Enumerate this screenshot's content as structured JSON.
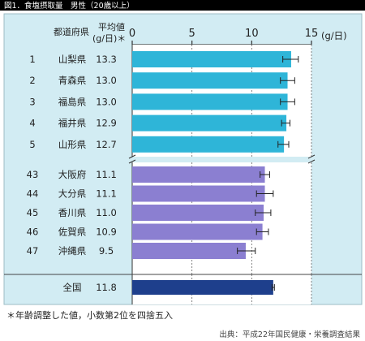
{
  "figure_title": "図1．食塩摂取量　男性（20歳以上）",
  "headers": {
    "prefecture": "都道府県",
    "mean_line1": "平均値",
    "mean_line2": "(g/日)＊",
    "unit": "(g/日)"
  },
  "footnote": "＊年齢調整した値，小数第2位を四捨五入",
  "source": "出典：平成22年国民健康・栄養調査結果",
  "colors": {
    "top_bar": "#2eb5d8",
    "bottom_bar": "#8b7fd1",
    "national_bar": "#1e3f8c",
    "panel": "#d2ecf3",
    "header_band": "#000000"
  },
  "chart_data": {
    "type": "bar",
    "orientation": "horizontal",
    "xlim": [
      0,
      15
    ],
    "xticks": [
      "0",
      "5",
      "10",
      "15"
    ],
    "groups": [
      {
        "name": "top5",
        "rows": [
          {
            "rank": "1",
            "prefecture": "山梨県",
            "label": "13.3",
            "value": 13.3,
            "err_low": 12.6,
            "err_high": 13.9
          },
          {
            "rank": "2",
            "prefecture": "青森県",
            "label": "13.0",
            "value": 13.0,
            "err_low": 12.4,
            "err_high": 13.6
          },
          {
            "rank": "3",
            "prefecture": "福島県",
            "label": "13.0",
            "value": 13.0,
            "err_low": 12.4,
            "err_high": 13.6
          },
          {
            "rank": "4",
            "prefecture": "福井県",
            "label": "12.9",
            "value": 12.9,
            "err_low": 12.5,
            "err_high": 13.2
          },
          {
            "rank": "5",
            "prefecture": "山形県",
            "label": "12.7",
            "value": 12.7,
            "err_low": 12.2,
            "err_high": 13.1
          }
        ]
      },
      {
        "name": "bottom5",
        "rows": [
          {
            "rank": "43",
            "prefecture": "大阪府",
            "label": "11.1",
            "value": 11.1,
            "err_low": 10.7,
            "err_high": 11.5
          },
          {
            "rank": "44",
            "prefecture": "大分県",
            "label": "11.1",
            "value": 11.1,
            "err_low": 10.4,
            "err_high": 11.8
          },
          {
            "rank": "45",
            "prefecture": "香川県",
            "label": "11.0",
            "value": 11.0,
            "err_low": 10.3,
            "err_high": 11.6
          },
          {
            "rank": "46",
            "prefecture": "佐賀県",
            "label": "10.9",
            "value": 10.9,
            "err_low": 10.4,
            "err_high": 11.4
          },
          {
            "rank": "47",
            "prefecture": "沖縄県",
            "label": "9.5",
            "value": 9.5,
            "err_low": 8.8,
            "err_high": 10.3
          }
        ]
      },
      {
        "name": "national",
        "rows": [
          {
            "rank": "",
            "prefecture": "全国",
            "label": "11.8",
            "value": 11.8,
            "err_low": 11.7,
            "err_high": 11.9
          }
        ]
      }
    ]
  }
}
